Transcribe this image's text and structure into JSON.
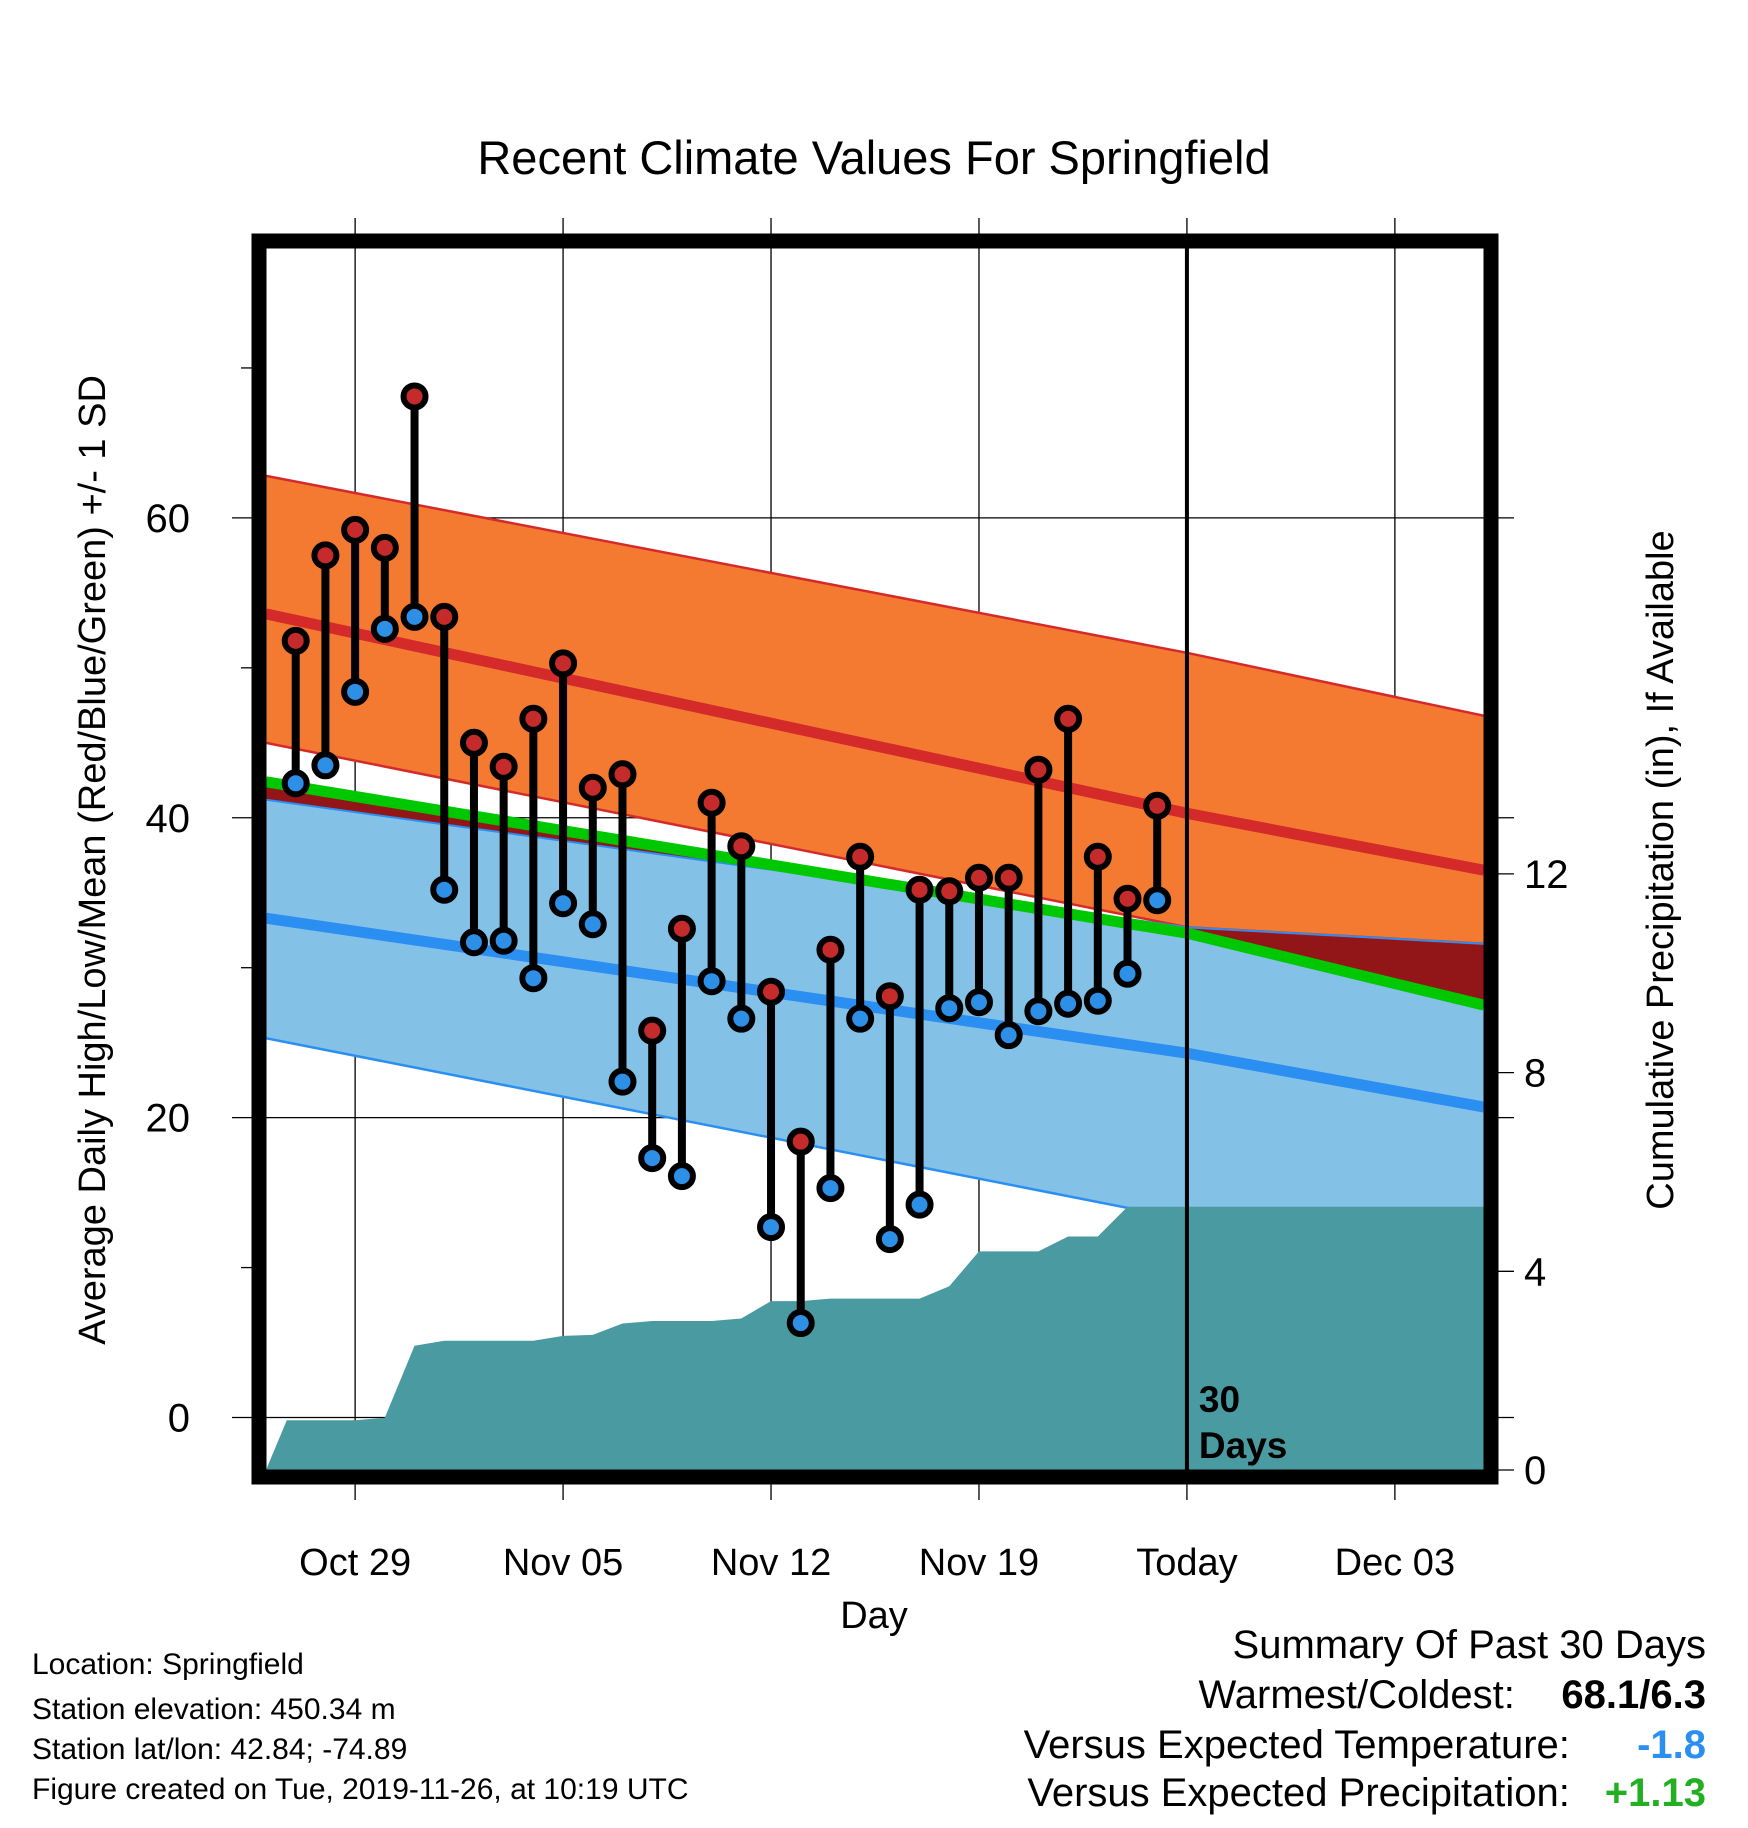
{
  "chart_data": {
    "type": "line",
    "title": "Recent Climate Values For Springfield",
    "xlabel": "Day",
    "ylabel": "Average Daily High/Low/Mean (Red/Blue/Green) +/- 1 SD",
    "y2label": "Cumulative Precipitation (in), If Available",
    "x_start": "2019-10-26",
    "x_end": "2019-12-06",
    "x_ticks": [
      {
        "date": "2019-10-29",
        "label": "Oct 29"
      },
      {
        "date": "2019-11-05",
        "label": "Nov 05"
      },
      {
        "date": "2019-11-12",
        "label": "Nov 12"
      },
      {
        "date": "2019-11-19",
        "label": "Nov 19"
      },
      {
        "date": "2019-11-26",
        "label": "Today"
      },
      {
        "date": "2019-12-03",
        "label": "Dec 03"
      }
    ],
    "ylim": [
      -3.5,
      78
    ],
    "yticks": [
      0,
      20,
      40,
      60
    ],
    "y2lim": [
      0,
      24.6
    ],
    "y2ticks": [
      0,
      4,
      8,
      12
    ],
    "grid": true,
    "today_marker": {
      "date": "2019-11-26",
      "label_line1": "30",
      "label_line2": "Days"
    },
    "normals": {
      "dates": [
        "2019-10-26",
        "2019-11-26",
        "2019-12-06"
      ],
      "high_mean": [
        53.6,
        40.3,
        36.5
      ],
      "high_plus_sd": [
        62.8,
        51.0,
        46.8
      ],
      "high_minus_sd": [
        45.0,
        32.7,
        31.6
      ],
      "low_mean": [
        33.3,
        24.3,
        20.7
      ],
      "low_plus_sd": [
        41.2,
        32.7,
        31.6
      ],
      "low_minus_sd": [
        25.3,
        13.2,
        10.5
      ],
      "daily_mean": [
        42.4,
        32.3,
        27.5
      ]
    },
    "observed": {
      "dates": [
        "2019-10-27",
        "2019-10-28",
        "2019-10-29",
        "2019-10-30",
        "2019-10-31",
        "2019-11-01",
        "2019-11-02",
        "2019-11-03",
        "2019-11-04",
        "2019-11-05",
        "2019-11-06",
        "2019-11-07",
        "2019-11-08",
        "2019-11-09",
        "2019-11-10",
        "2019-11-11",
        "2019-11-12",
        "2019-11-13",
        "2019-11-14",
        "2019-11-15",
        "2019-11-16",
        "2019-11-17",
        "2019-11-18",
        "2019-11-19",
        "2019-11-20",
        "2019-11-21",
        "2019-11-22",
        "2019-11-23",
        "2019-11-24",
        "2019-11-25"
      ],
      "high": [
        51.8,
        57.5,
        59.2,
        58.0,
        68.1,
        53.4,
        45.0,
        43.4,
        46.6,
        50.3,
        42.0,
        42.9,
        25.8,
        32.6,
        41.0,
        38.1,
        28.4,
        18.4,
        31.2,
        37.4,
        28.1,
        35.2,
        35.1,
        36.0,
        36.0,
        43.2,
        46.6,
        37.4,
        34.6,
        40.8
      ],
      "low": [
        42.3,
        43.5,
        48.4,
        52.6,
        53.4,
        35.2,
        31.7,
        31.8,
        29.3,
        34.3,
        32.9,
        22.4,
        17.3,
        16.1,
        29.1,
        26.6,
        12.7,
        6.3,
        15.3,
        26.6,
        11.9,
        14.2,
        27.3,
        27.7,
        25.5,
        27.1,
        27.6,
        27.8,
        29.6,
        34.5
      ]
    },
    "precip": {
      "dates": [
        "2019-10-26",
        "2019-10-26.7",
        "2019-10-29",
        "2019-10-30",
        "2019-10-31",
        "2019-11-01",
        "2019-11-02",
        "2019-11-03",
        "2019-11-04",
        "2019-11-05",
        "2019-11-06",
        "2019-11-07",
        "2019-11-08",
        "2019-11-09",
        "2019-11-10",
        "2019-11-11",
        "2019-11-12",
        "2019-11-13",
        "2019-11-14",
        "2019-11-15",
        "2019-11-16",
        "2019-11-17",
        "2019-11-18",
        "2019-11-19",
        "2019-11-20",
        "2019-11-21",
        "2019-11-22",
        "2019-11-23",
        "2019-11-24",
        "2019-11-25",
        "2019-12-06"
      ],
      "cumulative": [
        0.0,
        1.0,
        1.0,
        1.05,
        2.5,
        2.6,
        2.6,
        2.6,
        2.6,
        2.7,
        2.72,
        2.95,
        3.0,
        3.0,
        3.0,
        3.05,
        3.4,
        3.4,
        3.45,
        3.45,
        3.45,
        3.45,
        3.7,
        4.4,
        4.4,
        4.4,
        4.7,
        4.7,
        5.3,
        5.3,
        5.3
      ]
    }
  },
  "footer": {
    "location": "Location: Springfield",
    "elevation": "Station elevation: 450.34 m",
    "latlon": "Station lat/lon: 42.84; -74.89",
    "created": "Figure created on Tue, 2019-11-26, at 10:19 UTC"
  },
  "summary": {
    "heading": "Summary Of Past 30 Days",
    "warm_cold_label": "Warmest/Coldest:",
    "warm_cold_value": "68.1/6.3",
    "temp_label": "Versus Expected Temperature:",
    "temp_value": "-1.8",
    "precip_label": "Versus Expected Precipitation:",
    "precip_value": "+1.13"
  },
  "colors": {
    "high_band": "#f47a32",
    "high_mean": "#d42a2a",
    "low_band": "#84c1e7",
    "low_mean": "#2b8ff2",
    "overlap": "#921618",
    "daily_mean": "#00c800",
    "precip": "#4a9aa2",
    "high_dot": "#c62b2b",
    "low_dot": "#2d8fe6",
    "warm_value": "#000000",
    "temp_value": "#2b8ff2",
    "precip_value": "#22b022"
  }
}
